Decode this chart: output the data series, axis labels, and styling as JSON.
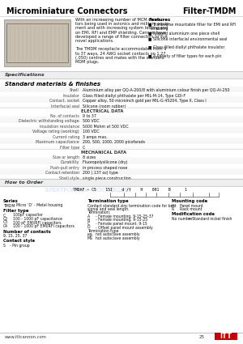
{
  "title_left": "Microminiature Connectors",
  "title_right": "Filter-TMDM",
  "bg_color": "#ffffff",
  "description_lines": [
    "With an increasing number of MCM connec-",
    "tors being used in avionics and military equip-",
    "ment and with increasing system testing and",
    "on EMI, RFI and EMP shielding. Cannon have",
    "developed a range of filter connectors to suit",
    "novel applications.",
    "",
    "The TMDM receptacle accommodates from 9",
    "to 37 ways, 24 AWG socket contacts on 1.27",
    "(.050) centres and mates with the standard",
    "MDM plugs."
  ],
  "features_title": "Features",
  "features": [
    "Transverse mountable filter for EMI and RFI\n  shielding",
    "Rugged aluminium one piece shell",
    "Silicone interfacial environmental seal",
    "Glass filled diallyl phthalate insulator",
    "A variety of filter types for each pin"
  ],
  "spec_title": "Specifications",
  "materials_title": "Standard materials & finishes",
  "spec_rows": [
    [
      "Shell",
      "Aluminium alloy per QQ-A-200/8 with aluminium colour finish per QQ-Al-250"
    ],
    [
      "Insulator",
      "Glass filled diallyl phthalate per MIL-M-14, Type GDI-F"
    ],
    [
      "Contact, socket",
      "Copper alloy, 50 microinch gold per MIL-G-45204, Type II, Class I"
    ],
    [
      "Interfacial seal",
      "Silicone (room rubber)"
    ],
    [
      "ELECTRICAL DATA",
      ""
    ],
    [
      "No. of contacts",
      "9 to 37"
    ],
    [
      "Dielectric withstanding voltage",
      "500 VDC"
    ],
    [
      "Insulation resistance",
      "5000 Mohm at 500 VDC"
    ],
    [
      "Voltage rating (working)",
      "100 VDC"
    ],
    [
      "Current rating",
      "3 amps max."
    ],
    [
      "Maximum capacitance",
      "200, 500, 1000, 2000 picofarads"
    ],
    [
      "Filter type",
      "C"
    ],
    [
      "MECHANICAL DATA",
      ""
    ],
    [
      "Size or length",
      "8 sizes"
    ],
    [
      "Durability",
      "Fluoropolysilicone (dry)"
    ],
    [
      "Push-pull entry",
      "in process shaped nose"
    ],
    [
      "Contact retention",
      "200 (.137 oz) type"
    ],
    [
      "Shell style",
      "single piece construction"
    ]
  ],
  "order_title": "How to Order",
  "watermark_text": "ЭЛЕКТРОННЫЙ  ПОСТАВЩИК",
  "order_code_parts": [
    "TMDAF",
    "C5",
    "15I",
    "d /",
    "H",
    "001",
    "B",
    "1"
  ],
  "col1_title": "Series",
  "col1_items": [
    [
      "TMDM",
      "Micro ‘D’ - Metal housing"
    ]
  ],
  "col1b_title": "Filter type",
  "col1b_items": [
    [
      "C",
      "100pF capacitor"
    ],
    [
      "C2",
      "100 - 1000 pF capacitance"
    ],
    [
      "C3",
      "100 pF EMI/RFI capacitors"
    ],
    [
      "C4",
      "100 - 1000 pF EMI/RFI capacitors"
    ]
  ],
  "col1c_title": "Number of contacts",
  "col1c_items": [
    [
      "9, 15, 25, 37",
      ""
    ]
  ],
  "col1d_title": "Contact style",
  "col1d_items": [
    [
      "S",
      "- Pin group"
    ]
  ],
  "col2_title": "Termination type",
  "col2_items": [
    [
      "Contact standard zinc termination code for best",
      ""
    ],
    [
      "signal and seal length.",
      ""
    ],
    [
      "Termination:",
      ""
    ],
    [
      "A",
      "- Female mounting, 9-15-25-37"
    ],
    [
      "B",
      "- Female mounting, 9-15-25"
    ],
    [
      "C",
      "- Female panel mount, 9-15"
    ],
    [
      "D",
      "- Offset panel mount assembly"
    ],
    [
      "Termination type",
      ""
    ],
    [
      "MA",
      "not autoclave assembly"
    ],
    [
      "MS",
      "hot autoclave assembly"
    ]
  ],
  "col3_title": "Mounting code",
  "col3_items": [
    [
      "H",
      "Panel mount"
    ],
    [
      "R",
      "Rack mount"
    ]
  ],
  "col3b_title": "Modification code",
  "col3b_items": [
    [
      "No number",
      "= Standard nickel finish"
    ]
  ],
  "footer_url": "www.ittcannon.com",
  "page_num": "25",
  "logo_text": "ITT"
}
